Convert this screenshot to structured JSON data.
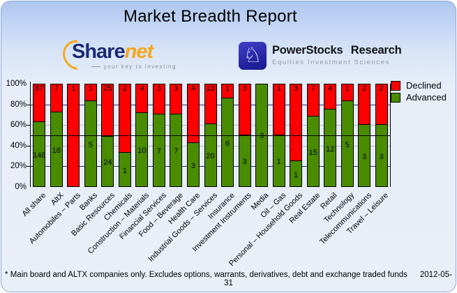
{
  "title": "Market Breadth Report",
  "sharenet": {
    "part1": "Share",
    "part2": "net",
    "tagline": "your key to investing"
  },
  "powerstocks": {
    "knight_icon": "♘",
    "title": "PowerStocks Research",
    "subtitle": "Equities Investment Sciences"
  },
  "legend": {
    "declined": "Declined",
    "advanced": "Advanced"
  },
  "footer": {
    "note": "* Main board and ALTX companies only. Excludes options, warrants, derivatives, debt and exchange traded funds",
    "date": "2012-05-31"
  },
  "colors": {
    "declined": "#ff0000",
    "advanced": "#4a8c00",
    "grid_navy": "#26267f",
    "grid_silver": "#b4b8c2",
    "midline_black": "#000000"
  },
  "chart_data": {
    "type": "bar",
    "stacked": true,
    "normalized": "percent_of_total",
    "title": "Market Breadth Report",
    "categories": [
      "All share",
      "AltX",
      "Automobiles – Parts",
      "Banks",
      "Basic Resources",
      "Chemicals",
      "Construction – Materials",
      "Financial Services",
      "Food – Beverage",
      "Health Care",
      "Industrial Goods – Services",
      "Insurance",
      "Investment Instruments",
      "Media",
      "Oil – Gas",
      "Personal – Household Goods",
      "Real Estate",
      "Retail",
      "Technology",
      "Telecommunications",
      "Travel – Leisure"
    ],
    "series": [
      {
        "name": "Declined",
        "color": "#ff0000",
        "values": [
          87,
          7,
          1,
          1,
          25,
          2,
          4,
          3,
          3,
          4,
          13,
          1,
          3,
          0,
          1,
          3,
          7,
          4,
          1,
          2,
          2
        ]
      },
      {
        "name": "Advanced",
        "color": "#4a8c00",
        "values": [
          148,
          18,
          0,
          5,
          24,
          1,
          10,
          7,
          7,
          3,
          20,
          6,
          3,
          3,
          1,
          1,
          15,
          12,
          5,
          3,
          3
        ]
      }
    ],
    "ylim": [
      0,
      100
    ],
    "yticks": [
      0,
      20,
      40,
      60,
      80,
      100
    ],
    "ytick_labels": [
      "0%",
      "20%",
      "40%",
      "60%",
      "80%",
      "100%"
    ],
    "gridlines": {
      "navy_at": [
        20,
        80
      ],
      "silver_at": [
        40,
        60
      ],
      "black_overlay_at": [
        50
      ]
    },
    "legend_position": "top-right",
    "xlabel": "",
    "ylabel": ""
  }
}
